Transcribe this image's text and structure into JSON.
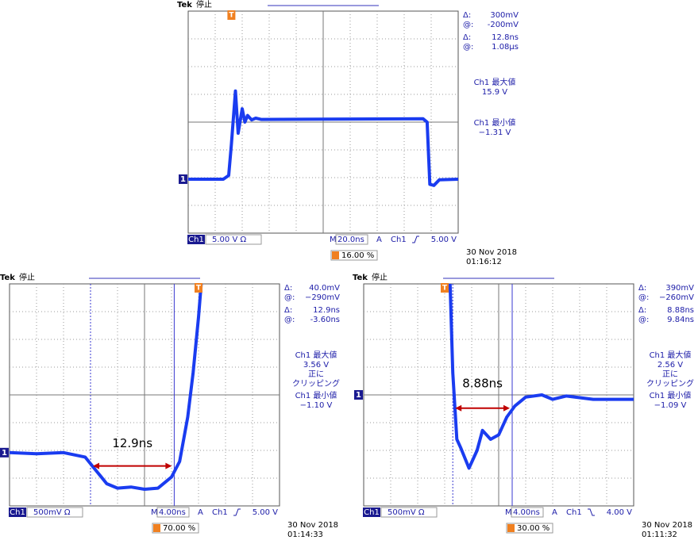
{
  "scopes": [
    {
      "brand": "Tek",
      "state": "停止",
      "trigger_marker": "T",
      "channel_marker": "1",
      "readouts": [
        {
          "label": "Δ:",
          "value": "300mV"
        },
        {
          "label": "@:",
          "value": "-200mV"
        },
        {
          "label": "Δ:",
          "value": "12.8ns"
        },
        {
          "label": "@:",
          "value": "1.08µs"
        }
      ],
      "measurements": [
        [
          "Ch1 最大値",
          "15.9 V"
        ],
        [
          "Ch1 最小値",
          "−1.31 V"
        ]
      ],
      "status_bar": {
        "channel": "Ch1",
        "scale": "5.00 V Ω",
        "timebase_label": "M",
        "timebase": "20.0ns",
        "trigger_label": "A",
        "trigger_source": "Ch1",
        "trigger_level": "5.00 V"
      },
      "trigger_position": "16.00 %",
      "date": "30 Nov 2018",
      "time": "01:16:12"
    },
    {
      "brand": "Tek",
      "state": "停止",
      "trigger_marker": "T",
      "channel_marker": "1",
      "readouts": [
        {
          "label": "Δ:",
          "value": "40.0mV"
        },
        {
          "label": "@:",
          "value": "−290mV"
        },
        {
          "label": "Δ:",
          "value": "12.9ns"
        },
        {
          "label": "@:",
          "value": "-3.60ns"
        }
      ],
      "measurements": [
        [
          "Ch1 最大値",
          "3.56 V",
          "正に",
          "クリッピング"
        ],
        [
          "Ch1 最小値",
          "−1.10 V"
        ]
      ],
      "status_bar": {
        "channel": "Ch1",
        "scale": "500mV Ω",
        "timebase_label": "M",
        "timebase": "4.00ns",
        "trigger_label": "A",
        "trigger_source": "Ch1",
        "trigger_level": "5.00 V"
      },
      "trigger_position": "70.00 %",
      "date": "30 Nov 2018",
      "time": "01:14:33",
      "annotation": "12.9ns"
    },
    {
      "brand": "Tek",
      "state": "停止",
      "trigger_marker": "T",
      "channel_marker": "1",
      "readouts": [
        {
          "label": "Δ:",
          "value": "390mV"
        },
        {
          "label": "@:",
          "value": "−260mV"
        },
        {
          "label": "Δ:",
          "value": "8.88ns"
        },
        {
          "label": "@:",
          "value": "9.84ns"
        }
      ],
      "measurements": [
        [
          "Ch1 最大値",
          "2.56 V",
          "正に",
          "クリッピング"
        ],
        [
          "Ch1 最小値",
          "−1.09 V"
        ]
      ],
      "status_bar": {
        "channel": "Ch1",
        "scale": "500mV Ω",
        "timebase_label": "M",
        "timebase": "4.00ns",
        "trigger_label": "A",
        "trigger_source": "Ch1",
        "trigger_level": "4.00 V"
      },
      "trigger_position": "30.00 %",
      "date": "30 Nov 2018",
      "time": "01:11:32",
      "annotation": "8.88ns"
    }
  ]
}
